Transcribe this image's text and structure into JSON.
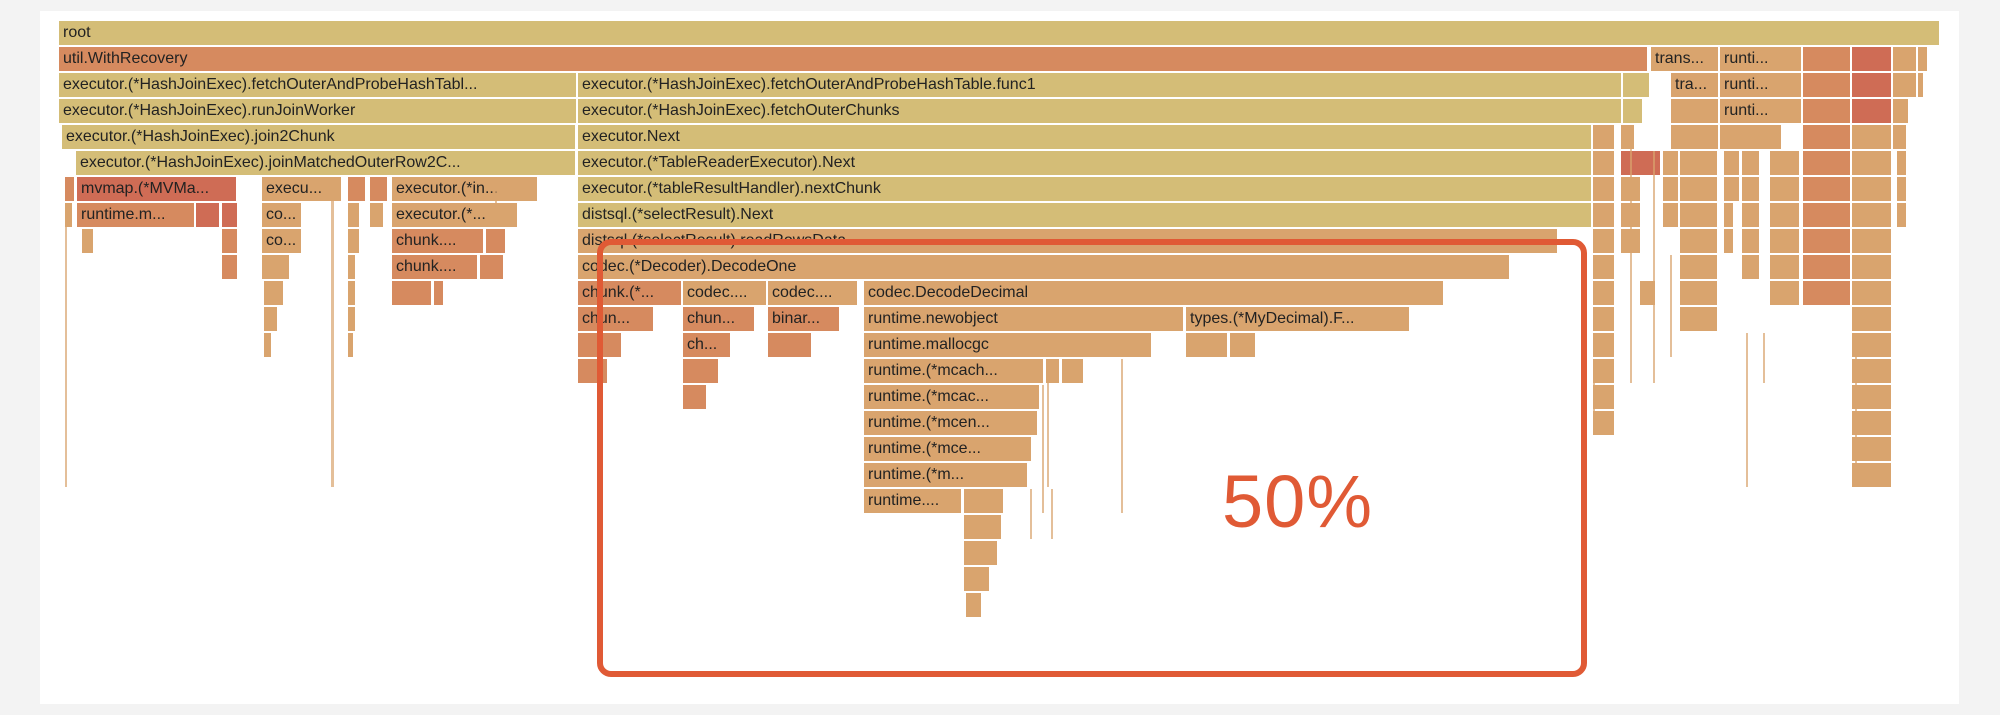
{
  "colors": {
    "yellow": "#d4bd77",
    "tan": "#d9a46e",
    "orange": "#d68a5f",
    "red": "#cf6c55",
    "highlight": "#e05a35"
  },
  "frames": {
    "root": "root",
    "util_withrecovery": "util.WithRecovery",
    "trans": "trans...",
    "runti_1": "runti...",
    "fetch_outer_probe_left": "executor.(*HashJoinExec).fetchOuterAndProbeHashTabl...",
    "fetch_outer_probe_func1": "executor.(*HashJoinExec).fetchOuterAndProbeHashTable.func1",
    "tra": "tra...",
    "runti_2": "runti...",
    "run_join_worker": "executor.(*HashJoinExec).runJoinWorker",
    "fetch_outer_chunks": "executor.(*HashJoinExec).fetchOuterChunks",
    "runti_3": "runti...",
    "join2chunk": "executor.(*HashJoinExec).join2Chunk",
    "executor_next": "executor.Next",
    "join_matched_outer": "executor.(*HashJoinExec).joinMatchedOuterRow2C...",
    "table_reader_next": "executor.(*TableReaderExecutor).Next",
    "mvmap": "mvmap.(*MVMa...",
    "execu": "execu...",
    "executor_in": "executor.(*in...",
    "table_result_next_chunk": "executor.(*tableResultHandler).nextChunk",
    "runtime_m": "runtime.m...",
    "co_1": "co...",
    "executor_star": "executor.(*...",
    "select_result_next": "distsql.(*selectResult).Next",
    "co_2": "co...",
    "chunk_1": "chunk....",
    "read_rows_data": "distsql.(*selectResult).readRowsData",
    "chunk_2": "chunk....",
    "decoder_decode_one": "codec.(*Decoder).DecodeOne",
    "chunk_star": "chunk.(*...",
    "codec_1": "codec....",
    "codec_2": "codec....",
    "decode_decimal": "codec.DecodeDecimal",
    "chun_1": "chun...",
    "chun_2": "chun...",
    "binar": "binar...",
    "newobject": "runtime.newobject",
    "mydecimal": "types.(*MyDecimal).F...",
    "ch": "ch...",
    "mallocgc": "runtime.mallocgc",
    "mcach": "runtime.(*mcach...",
    "mcac": "runtime.(*mcac...",
    "mcen": "runtime.(*mcen...",
    "mce": "runtime.(*mce...",
    "m": "runtime.(*m...",
    "runtime_dots": "runtime...."
  },
  "highlight": {
    "label": "50%"
  }
}
